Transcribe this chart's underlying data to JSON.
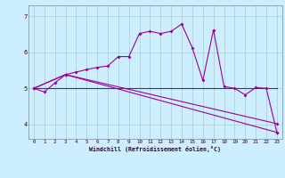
{
  "xlabel": "Windchill (Refroidissement éolien,°C)",
  "background_color": "#cceeff",
  "grid_color": "#aacccc",
  "line_color": "#990099",
  "xlim": [
    -0.5,
    23.5
  ],
  "ylim": [
    3.6,
    7.3
  ],
  "yticks": [
    4,
    5,
    6,
    7
  ],
  "xticks": [
    0,
    1,
    2,
    3,
    4,
    5,
    6,
    7,
    8,
    9,
    10,
    11,
    12,
    13,
    14,
    15,
    16,
    17,
    18,
    19,
    20,
    21,
    22,
    23
  ],
  "line1_x": [
    0,
    1,
    2,
    3,
    4,
    5,
    6,
    7,
    8,
    9,
    10,
    11,
    12,
    13,
    14,
    15,
    16,
    17,
    18,
    19,
    20,
    21,
    22,
    23
  ],
  "line1_y": [
    5.0,
    4.9,
    5.15,
    5.38,
    5.45,
    5.52,
    5.58,
    5.62,
    5.88,
    5.88,
    6.52,
    6.58,
    6.52,
    6.58,
    6.78,
    6.12,
    5.22,
    6.62,
    5.05,
    5.0,
    4.82,
    5.02,
    5.0,
    3.78
  ],
  "line2_x": [
    0,
    3,
    23
  ],
  "line2_y": [
    5.0,
    5.38,
    3.78
  ],
  "line3_x": [
    0,
    23
  ],
  "line3_y": [
    5.0,
    5.0
  ],
  "line4_x": [
    0,
    3,
    23
  ],
  "line4_y": [
    5.0,
    5.38,
    4.02
  ]
}
